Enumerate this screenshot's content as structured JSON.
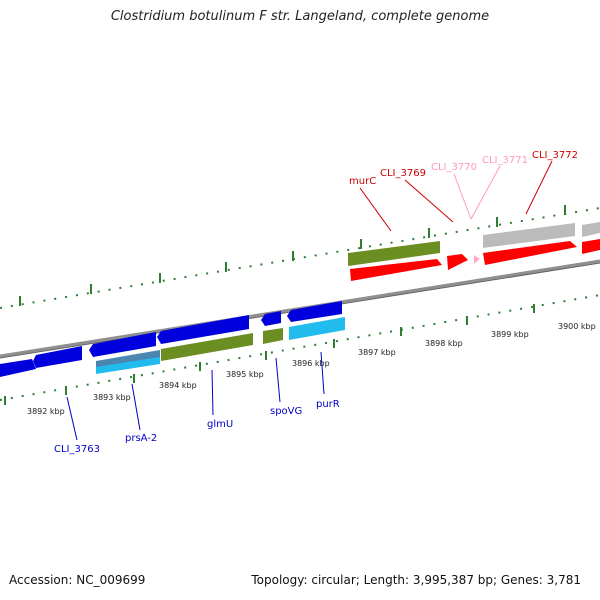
{
  "title": "Clostridium botulinum F str. Langeland, complete genome",
  "footer": {
    "accession": "Accession: NC_009699",
    "stats": "Topology: circular; Length: 3,995,387 bp; Genes: 3,781"
  },
  "colors": {
    "backbone": "#8c8c8c",
    "ticks": "#2e7d32",
    "forward_gene": "#0000dd",
    "forward_light": "#22bbee",
    "forward_mixed": "#4a86b0",
    "reverse_gene": "#ff0000",
    "olive_gene": "#6b8e23",
    "grey_gene": "#bbbbbb",
    "pink_gene": "#ffaacc",
    "label_blue": "#0000cc",
    "label_red": "#cc0000",
    "label_pink": "#ff99bb"
  },
  "scale_labels": [
    "3892 kbp",
    "3893 kbp",
    "3894 kbp",
    "3895 kbp",
    "3896 kbp",
    "3897 kbp",
    "3898 kbp",
    "3899 kbp",
    "3900 kbp"
  ],
  "gene_labels": {
    "lower": [
      "CLI_3763",
      "prsA-2",
      "glmU",
      "spoVG",
      "purR"
    ],
    "upper": [
      "murC",
      "CLI_3769",
      "CLI_3770",
      "CLI_3771",
      "CLI_3772"
    ]
  }
}
